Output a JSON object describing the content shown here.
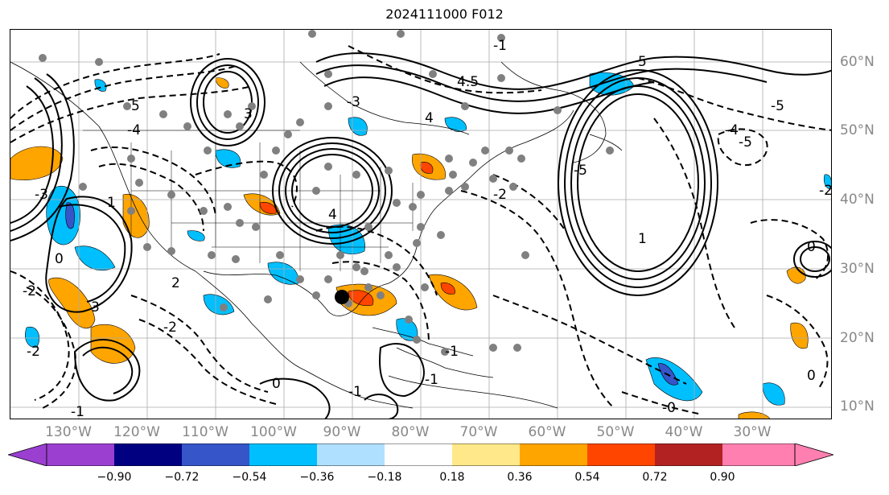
{
  "title": "2024111000 F012",
  "lon_labels": [
    "130°W",
    "120°W",
    "110°W",
    "100°W",
    "90°W",
    "80°W",
    "70°W",
    "60°W",
    "50°W",
    "40°W",
    "30°W"
  ],
  "lat_labels": [
    "60°N",
    "50°N",
    "40°N",
    "30°N",
    "20°N",
    "10°N"
  ],
  "colorbar": {
    "ticks": [
      "−0.90",
      "−0.72",
      "−0.54",
      "−0.36",
      "−0.18",
      "0.18",
      "0.36",
      "0.54",
      "0.72",
      "0.90"
    ],
    "colors": {
      "under": "#9b3fd1",
      "bins": [
        "#9b3fd1",
        "#000080",
        "#3655c8",
        "#00bfff",
        "#b0e0ff",
        "#ffffff",
        "#ffe88a",
        "#ffa500",
        "#ff4500",
        "#b22222"
      ],
      "over": "#ff80b0"
    }
  },
  "contour_labels": [
    "0",
    "0",
    "0",
    "-2",
    "-2",
    "-1",
    "-3",
    "-3",
    "-4",
    "-4",
    "-5",
    "-5",
    "-5",
    "2",
    "3",
    "4",
    "4",
    "4.5",
    "5",
    "1",
    "1",
    "-1",
    "-2",
    "-2",
    "3",
    "5",
    "-0",
    "-1",
    "0",
    "-1",
    "-1",
    "-2"
  ],
  "marker": {
    "color": "#000000",
    "description": "large black dot"
  }
}
